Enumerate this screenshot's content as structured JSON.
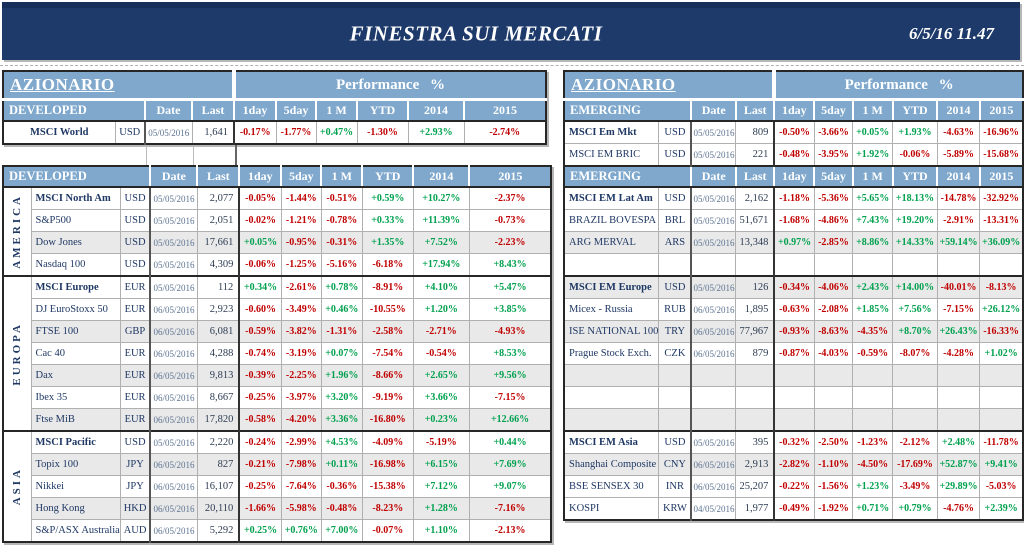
{
  "banner": {
    "title": "FINESTRA SUI MERCATI",
    "datetime": "6/5/16 11.47"
  },
  "labels": {
    "performance": "Performance %",
    "date": "Date",
    "last": "Last",
    "perf": [
      "1day",
      "5day",
      "1 M",
      "YTD",
      "2014",
      "2015"
    ]
  },
  "colors": {
    "banner_navy": "#1d3a6b",
    "header_blue": "#7fa8cc",
    "navy_text": "#1f3864",
    "positive_green": "#00a14e",
    "negative_red": "#c00000",
    "row_stripe": "#e9e9e9"
  },
  "left_panel": {
    "section_title": "AZIONARIO",
    "table1": {
      "header": "DEVELOPED",
      "rows": [
        {
          "name": "MSCI World",
          "ccy": "USD",
          "date": "05/05/2016",
          "last": "1,641",
          "bold": true,
          "center": true,
          "perf": [
            "-0.17%",
            "-1.77%",
            "+0.47%",
            "-1.30%",
            "+2.93%",
            "-2.74%"
          ]
        }
      ]
    },
    "table2": {
      "header": "DEVELOPED",
      "groups": [
        {
          "region": "AMERICA",
          "rows": [
            {
              "name": "MSCI North Am",
              "ccy": "USD",
              "date": "05/05/2016",
              "last": "2,077",
              "bold": true,
              "perf": [
                "-0.05%",
                "-1.44%",
                "-0.51%",
                "+0.59%",
                "+10.27%",
                "-2.37%"
              ]
            },
            {
              "name": "S&P500",
              "ccy": "USD",
              "date": "05/05/2016",
              "last": "2,051",
              "perf": [
                "-0.02%",
                "-1.21%",
                "-0.78%",
                "+0.33%",
                "+11.39%",
                "-0.73%"
              ]
            },
            {
              "name": "Dow Jones",
              "ccy": "USD",
              "date": "05/05/2016",
              "last": "17,661",
              "shade": true,
              "perf": [
                "+0.05%",
                "-0.95%",
                "-0.31%",
                "+1.35%",
                "+7.52%",
                "-2.23%"
              ]
            },
            {
              "name": "Nasdaq 100",
              "ccy": "USD",
              "date": "05/05/2016",
              "last": "4,309",
              "perf": [
                "-0.06%",
                "-1.25%",
                "-5.16%",
                "-6.18%",
                "+17.94%",
                "+8.43%"
              ]
            }
          ]
        },
        {
          "region": "EUROPA",
          "rows": [
            {
              "name": "MSCI Europe",
              "ccy": "EUR",
              "date": "05/05/2016",
              "last": "112",
              "bold": true,
              "perf": [
                "+0.34%",
                "-2.61%",
                "+0.78%",
                "-8.91%",
                "+4.10%",
                "+5.47%"
              ]
            },
            {
              "name": "DJ EuroStoxx 50",
              "ccy": "EUR",
              "date": "06/05/2016",
              "last": "2,923",
              "perf": [
                "-0.60%",
                "-3.49%",
                "+0.46%",
                "-10.55%",
                "+1.20%",
                "+3.85%"
              ]
            },
            {
              "name": "FTSE 100",
              "ccy": "GBP",
              "date": "06/05/2016",
              "last": "6,081",
              "shade": true,
              "perf": [
                "-0.59%",
                "-3.82%",
                "-1.31%",
                "-2.58%",
                "-2.71%",
                "-4.93%"
              ]
            },
            {
              "name": "Cac 40",
              "ccy": "EUR",
              "date": "06/05/2016",
              "last": "4,288",
              "perf": [
                "-0.74%",
                "-3.19%",
                "+0.07%",
                "-7.54%",
                "-0.54%",
                "+8.53%"
              ]
            },
            {
              "name": "Dax",
              "ccy": "EUR",
              "date": "06/05/2016",
              "last": "9,813",
              "shade": true,
              "perf": [
                "-0.39%",
                "-2.25%",
                "+1.96%",
                "-8.66%",
                "+2.65%",
                "+9.56%"
              ]
            },
            {
              "name": "Ibex 35",
              "ccy": "EUR",
              "date": "06/05/2016",
              "last": "8,667",
              "perf": [
                "-0.25%",
                "-3.97%",
                "+3.20%",
                "-9.19%",
                "+3.66%",
                "-7.15%"
              ]
            },
            {
              "name": "Ftse MiB",
              "ccy": "EUR",
              "date": "06/05/2016",
              "last": "17,820",
              "shade": true,
              "perf": [
                "-0.58%",
                "-4.20%",
                "+3.36%",
                "-16.80%",
                "+0.23%",
                "+12.66%"
              ]
            }
          ]
        },
        {
          "region": "ASIA",
          "rows": [
            {
              "name": "MSCI Pacific",
              "ccy": "USD",
              "date": "05/05/2016",
              "last": "2,220",
              "bold": true,
              "perf": [
                "-0.24%",
                "-2.99%",
                "+4.53%",
                "-4.09%",
                "-5.19%",
                "+0.44%"
              ]
            },
            {
              "name": "Topix 100",
              "ccy": "JPY",
              "date": "06/05/2016",
              "last": "827",
              "shade": true,
              "perf": [
                "-0.21%",
                "-7.98%",
                "+0.11%",
                "-16.98%",
                "+6.15%",
                "+7.69%"
              ]
            },
            {
              "name": "Nikkei",
              "ccy": "JPY",
              "date": "06/05/2016",
              "last": "16,107",
              "perf": [
                "-0.25%",
                "-7.64%",
                "-0.36%",
                "-15.38%",
                "+7.12%",
                "+9.07%"
              ]
            },
            {
              "name": "Hong Kong",
              "ccy": "HKD",
              "date": "06/05/2016",
              "last": "20,110",
              "shade": true,
              "perf": [
                "-1.66%",
                "-5.98%",
                "-0.48%",
                "-8.23%",
                "+1.28%",
                "-7.16%"
              ]
            },
            {
              "name": "S&P/ASX Australia",
              "ccy": "AUD",
              "date": "06/05/2016",
              "last": "5,292",
              "perf": [
                "+0.25%",
                "+0.76%",
                "+7.00%",
                "-0.07%",
                "+1.10%",
                "-2.13%"
              ]
            }
          ]
        }
      ]
    }
  },
  "right_panel": {
    "section_title": "AZIONARIO",
    "table1": {
      "header": "EMERGING",
      "rows": [
        {
          "name": "MSCI Em Mkt",
          "ccy": "USD",
          "date": "05/05/2016",
          "last": "809",
          "bold": true,
          "perf": [
            "-0.50%",
            "-3.66%",
            "+0.05%",
            "+1.93%",
            "-4.63%",
            "-16.96%"
          ]
        },
        {
          "name": "MSCI EM BRIC",
          "ccy": "USD",
          "date": "05/05/2016",
          "last": "221",
          "perf": [
            "-0.48%",
            "-3.95%",
            "+1.92%",
            "-0.06%",
            "-5.89%",
            "-15.68%"
          ]
        }
      ]
    },
    "table2": {
      "header": "EMERGING",
      "rows": [
        {
          "name": "MSCI EM Lat Am",
          "ccy": "USD",
          "date": "05/05/2016",
          "last": "2,162",
          "bold": true,
          "perf": [
            "-1.18%",
            "-5.36%",
            "+5.65%",
            "+18.13%",
            "-14.78%",
            "-32.92%"
          ]
        },
        {
          "name": "BRAZIL BOVESPA",
          "ccy": "BRL",
          "date": "05/05/2016",
          "last": "51,671",
          "perf": [
            "-1.68%",
            "-4.86%",
            "+7.43%",
            "+19.20%",
            "-2.91%",
            "-13.31%"
          ]
        },
        {
          "name": "ARG MERVAL",
          "ccy": "ARS",
          "date": "05/05/2016",
          "last": "13,348",
          "shade": true,
          "perf": [
            "+0.97%",
            "-2.85%",
            "+8.86%",
            "+14.33%",
            "+59.14%",
            "+36.09%"
          ]
        },
        {
          "name": "",
          "ccy": "",
          "date": "",
          "last": "",
          "perf": [
            "",
            "",
            "",
            "",
            "",
            ""
          ]
        },
        {
          "name": "MSCI EM Europe",
          "ccy": "USD",
          "date": "05/05/2016",
          "last": "126",
          "bold": true,
          "shade": true,
          "gstart": true,
          "perf": [
            "-0.34%",
            "-4.06%",
            "+2.43%",
            "+14.00%",
            "-40.01%",
            "-8.13%"
          ]
        },
        {
          "name": "Micex - Russia",
          "ccy": "RUB",
          "date": "06/05/2016",
          "last": "1,895",
          "perf": [
            "-0.63%",
            "-2.08%",
            "+1.85%",
            "+7.56%",
            "-7.15%",
            "+26.12%"
          ]
        },
        {
          "name": "ISE NATIONAL 100",
          "ccy": "TRY",
          "date": "06/05/2016",
          "last": "77,967",
          "shade": true,
          "perf": [
            "-0.93%",
            "-8.63%",
            "-4.35%",
            "+8.70%",
            "+26.43%",
            "-16.33%"
          ]
        },
        {
          "name": "Prague Stock Exch.",
          "ccy": "CZK",
          "date": "06/05/2016",
          "last": "879",
          "perf": [
            "-0.87%",
            "-4.03%",
            "-0.59%",
            "-8.07%",
            "-4.28%",
            "+1.02%"
          ]
        },
        {
          "name": "",
          "ccy": "",
          "date": "",
          "last": "",
          "shade": true,
          "perf": [
            "",
            "",
            "",
            "",
            "",
            ""
          ]
        },
        {
          "name": "",
          "ccy": "",
          "date": "",
          "last": "",
          "perf": [
            "",
            "",
            "",
            "",
            "",
            ""
          ]
        },
        {
          "name": "",
          "ccy": "",
          "date": "",
          "last": "",
          "shade": true,
          "perf": [
            "",
            "",
            "",
            "",
            "",
            ""
          ]
        },
        {
          "name": "MSCI EM Asia",
          "ccy": "USD",
          "date": "05/05/2016",
          "last": "395",
          "bold": true,
          "gstart": true,
          "perf": [
            "-0.32%",
            "-2.50%",
            "-1.23%",
            "-2.12%",
            "+2.48%",
            "-11.78%"
          ]
        },
        {
          "name": "Shanghai Composite",
          "ccy": "CNY",
          "date": "06/05/2016",
          "last": "2,913",
          "shade": true,
          "perf": [
            "-2.82%",
            "-1.10%",
            "-4.50%",
            "-17.69%",
            "+52.87%",
            "+9.41%"
          ]
        },
        {
          "name": "BSE SENSEX 30",
          "ccy": "INR",
          "date": "06/05/2016",
          "last": "25,207",
          "perf": [
            "-0.22%",
            "-1.56%",
            "+1.23%",
            "-3.49%",
            "+29.89%",
            "-5.03%"
          ]
        },
        {
          "name": "KOSPI",
          "ccy": "KRW",
          "date": "04/05/2016",
          "last": "1,977",
          "perf": [
            "-0.49%",
            "-1.92%",
            "+0.71%",
            "+0.79%",
            "-4.76%",
            "+2.39%"
          ]
        }
      ]
    }
  }
}
